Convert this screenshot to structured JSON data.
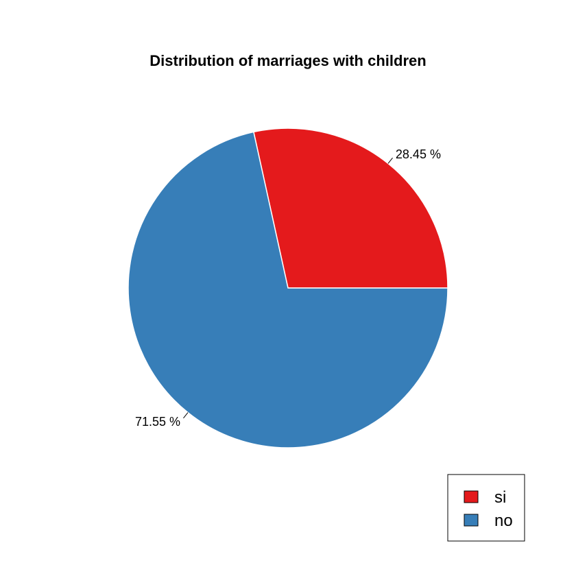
{
  "chart_data": {
    "type": "pie",
    "title": "Distribution of marriages with children",
    "slices": [
      {
        "name": "si",
        "value": 28.45,
        "label": "28.45 %",
        "color": "#E41A1C"
      },
      {
        "name": "no",
        "value": 71.55,
        "label": "71.55 %",
        "color": "#377EB8"
      }
    ],
    "start_angle_deg": 0,
    "direction": "counterclockwise",
    "legend": {
      "position": "bottom-right",
      "items": [
        {
          "label": "si",
          "color": "#E41A1C"
        },
        {
          "label": "no",
          "color": "#377EB8"
        }
      ]
    }
  }
}
